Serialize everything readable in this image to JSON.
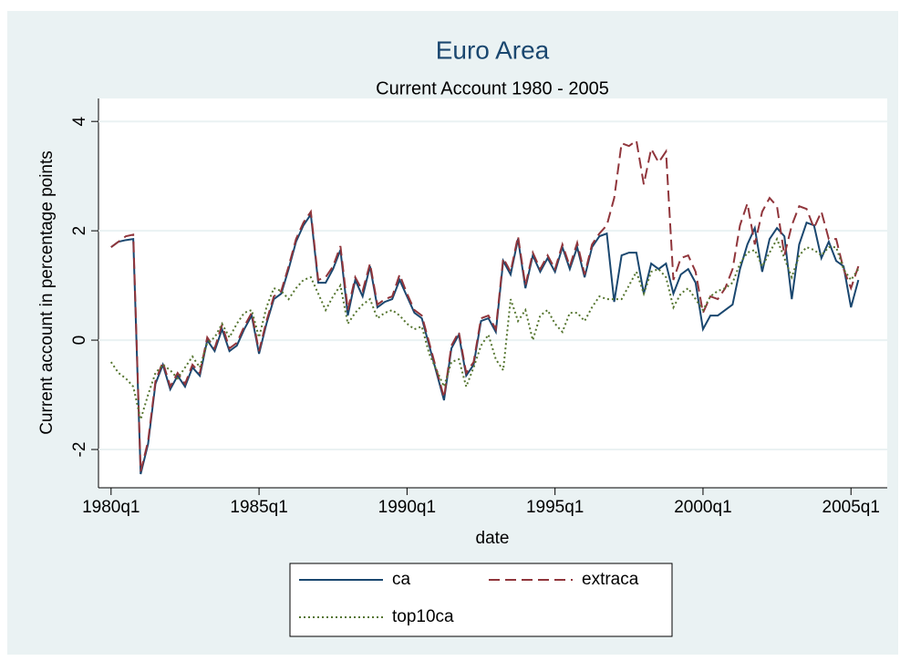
{
  "chart_data": {
    "type": "line",
    "title": "Euro Area",
    "subtitle": "Current Account 1980 - 2005",
    "x_label": "date",
    "y_label": "Current account in percentage points",
    "x": [
      80,
      81,
      82,
      83,
      84,
      85,
      86,
      87,
      88,
      89,
      90,
      91,
      92,
      93,
      94,
      95,
      96,
      97,
      98,
      99,
      100,
      101,
      102,
      103,
      104,
      105,
      106,
      107,
      108,
      109,
      110,
      111,
      112,
      113,
      114,
      115,
      116,
      117,
      118,
      119,
      120,
      121,
      122,
      123,
      124,
      125,
      126,
      127,
      128,
      129,
      130,
      131,
      132,
      133,
      134,
      135,
      136,
      137,
      138,
      139,
      140,
      141,
      142,
      143,
      144,
      145,
      146,
      147,
      148,
      149,
      150,
      151,
      152,
      153,
      154,
      155,
      156,
      157,
      158,
      159,
      160,
      161,
      162,
      163,
      164,
      165,
      166,
      167,
      168,
      169,
      170,
      171,
      172,
      173,
      174,
      175,
      176,
      177,
      178,
      179,
      180,
      181
    ],
    "series": [
      {
        "name": "ca",
        "color": "#1a476f",
        "dash": "solid",
        "values": [
          1.7,
          1.8,
          1.83,
          1.85,
          -2.45,
          -1.9,
          -0.8,
          -0.45,
          -0.9,
          -0.65,
          -0.85,
          -0.5,
          -0.65,
          0,
          -0.2,
          0.2,
          -0.2,
          -0.1,
          0.2,
          0.45,
          -0.25,
          0.3,
          0.75,
          0.85,
          1.3,
          1.8,
          2.1,
          2.3,
          1.05,
          1.05,
          1.3,
          1.65,
          0.45,
          1.1,
          0.8,
          1.35,
          0.6,
          0.7,
          0.75,
          1.1,
          0.8,
          0.5,
          0.4,
          -0.1,
          -0.6,
          -1.1,
          -0.15,
          0.1,
          -0.65,
          -0.45,
          0.35,
          0.4,
          0.15,
          1.45,
          1.2,
          1.85,
          0.95,
          1.55,
          1.25,
          1.5,
          1.25,
          1.7,
          1.3,
          1.7,
          1.15,
          1.7,
          1.9,
          1.95,
          0.7,
          1.55,
          1.6,
          1.6,
          0.85,
          1.4,
          1.3,
          1.4,
          0.85,
          1.2,
          1.3,
          1.05,
          0.2,
          0.45,
          0.45,
          0.55,
          0.65,
          1.3,
          1.75,
          2.05,
          1.25,
          1.85,
          2.05,
          1.9,
          0.75,
          1.75,
          2.15,
          2.1,
          1.5,
          1.8,
          1.45,
          1.35,
          0.6,
          1.1
        ]
      },
      {
        "name": "extraca",
        "color": "#90353b",
        "dash": "dashed",
        "values": [
          1.7,
          1.8,
          1.9,
          1.93,
          -2.4,
          -1.85,
          -0.75,
          -0.4,
          -0.85,
          -0.6,
          -0.8,
          -0.45,
          -0.6,
          0.05,
          -0.15,
          0.28,
          -0.15,
          -0.05,
          0.25,
          0.5,
          -0.2,
          0.35,
          0.8,
          0.9,
          1.35,
          1.85,
          2.15,
          2.35,
          1.1,
          1.15,
          1.35,
          1.72,
          0.55,
          1.15,
          0.9,
          1.4,
          0.65,
          0.75,
          0.8,
          1.2,
          0.85,
          0.55,
          0.45,
          -0.05,
          -0.55,
          -1.05,
          -0.1,
          0.15,
          -0.6,
          -0.4,
          0.4,
          0.45,
          0.2,
          1.5,
          1.25,
          1.9,
          1.0,
          1.6,
          1.3,
          1.55,
          1.3,
          1.75,
          1.35,
          1.78,
          1.2,
          1.75,
          1.95,
          2.1,
          2.6,
          3.6,
          3.55,
          3.65,
          2.85,
          3.5,
          3.25,
          3.45,
          1.1,
          1.5,
          1.55,
          1.25,
          0.5,
          0.8,
          0.75,
          0.95,
          1.3,
          2.1,
          2.5,
          1.75,
          2.35,
          2.6,
          2.45,
          1.55,
          2.1,
          2.45,
          2.4,
          2.05,
          2.35,
          1.85,
          1.85,
          1.3,
          0.95,
          1.35
        ]
      },
      {
        "name": "top10ca",
        "color": "#55752f",
        "dash": "dotted",
        "values": [
          -0.4,
          -0.6,
          -0.7,
          -0.85,
          -1.45,
          -1.0,
          -0.6,
          -0.45,
          -0.55,
          -0.7,
          -0.5,
          -0.3,
          -0.5,
          -0.05,
          0.05,
          0.3,
          0.05,
          0.3,
          0.5,
          0.55,
          0.05,
          0.6,
          0.95,
          0.9,
          0.75,
          0.95,
          1.1,
          1.15,
          0.85,
          0.55,
          0.8,
          1.0,
          0.3,
          0.5,
          0.65,
          0.75,
          0.4,
          0.5,
          0.55,
          0.45,
          0.3,
          0.2,
          0.25,
          -0.25,
          -0.55,
          -0.85,
          -0.4,
          -0.35,
          -0.85,
          -0.5,
          -0.1,
          0.1,
          -0.35,
          -0.55,
          0.75,
          0.35,
          0.55,
          0.0,
          0.45,
          0.55,
          0.3,
          0.15,
          0.5,
          0.5,
          0.35,
          0.6,
          0.8,
          0.75,
          0.75,
          0.75,
          1.0,
          1.25,
          0.85,
          1.25,
          1.3,
          1.15,
          0.6,
          0.85,
          0.95,
          0.75,
          0.55,
          0.8,
          0.9,
          0.95,
          1.05,
          1.4,
          1.6,
          1.65,
          1.35,
          1.6,
          1.85,
          1.5,
          1.15,
          1.55,
          1.7,
          1.65,
          1.55,
          1.7,
          1.7,
          1.3,
          1.1,
          1.3
        ]
      }
    ],
    "xlim": [
      78.3,
      184.9
    ],
    "xticks": [
      {
        "value": 80,
        "label": "1980q1"
      },
      {
        "value": 100,
        "label": "1985q1"
      },
      {
        "value": 120,
        "label": "1990q1"
      },
      {
        "value": 140,
        "label": "1995q1"
      },
      {
        "value": 160,
        "label": "2000q1"
      },
      {
        "value": 180,
        "label": "2005q1"
      }
    ],
    "ylim": [
      -2.7,
      4.42
    ],
    "yticks": [
      -2,
      0,
      2,
      4
    ],
    "grid": true,
    "legend": "bottom"
  }
}
